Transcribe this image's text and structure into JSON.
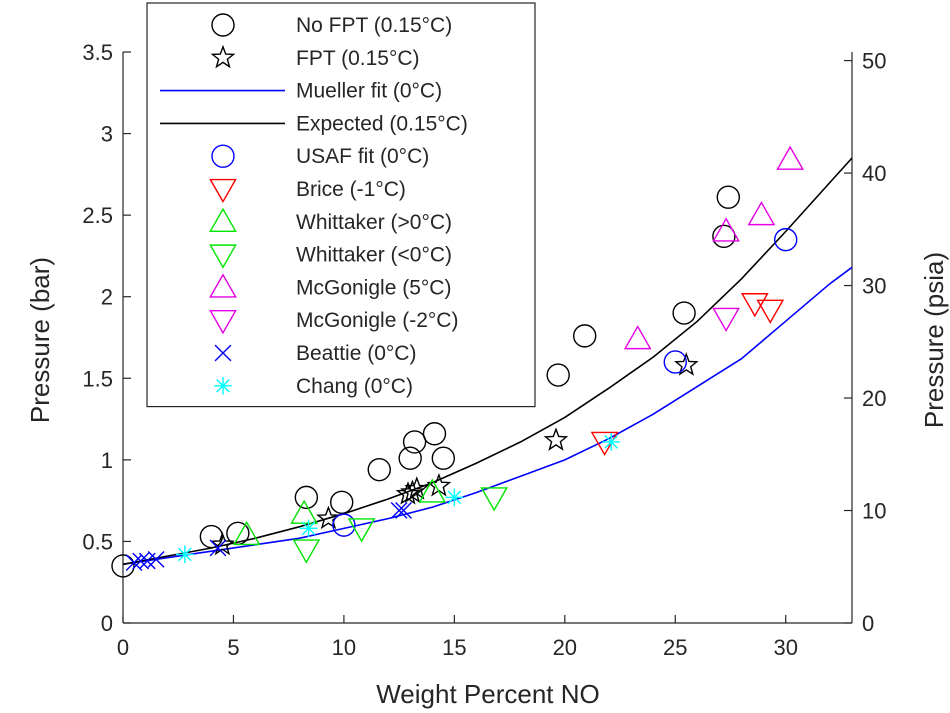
{
  "chart_data": {
    "type": "scatter",
    "xlabel": "Weight Percent NO",
    "ylabel": "Pressure (bar)",
    "y2label": "Pressure (psia)",
    "xlim": [
      0,
      33
    ],
    "ylim": [
      0,
      3.5
    ],
    "y2lim": [
      0,
      50.763
    ],
    "xticks": [
      0,
      5,
      10,
      15,
      20,
      25,
      30
    ],
    "yticks": [
      0,
      0.5,
      1,
      1.5,
      2,
      2.5,
      3,
      3.5
    ],
    "y2ticks": [
      0,
      10,
      20,
      30,
      40,
      50
    ],
    "grid": false,
    "legend_position": "top-left",
    "series": [
      {
        "name": "No FPT (0.15°C)",
        "marker": "circle",
        "color": "#000000",
        "x": [
          0,
          4,
          5.2,
          8.3,
          9.9,
          11.6,
          13.0,
          13.2,
          14.1,
          14.5,
          19.7,
          20.9,
          25.4,
          27.2,
          27.4
        ],
        "y": [
          0.35,
          0.53,
          0.55,
          0.77,
          0.74,
          0.94,
          1.01,
          1.11,
          1.16,
          1.01,
          1.52,
          1.76,
          1.9,
          2.37,
          2.61
        ]
      },
      {
        "name": "FPT (0.15°C)",
        "marker": "star",
        "color": "#000000",
        "x": [
          4.5,
          9.3,
          12.9,
          13.1,
          13.3,
          14.3,
          19.6,
          25.5
        ],
        "y": [
          0.48,
          0.64,
          0.79,
          0.8,
          0.82,
          0.84,
          1.12,
          1.58
        ]
      },
      {
        "name": "Mueller fit (0°C)",
        "line": "solid",
        "color": "#0000ff",
        "x": [
          0,
          2,
          4,
          6,
          8,
          10,
          12,
          14,
          16,
          18,
          20,
          22,
          24,
          26,
          28,
          30,
          32,
          33
        ],
        "y": [
          0.36,
          0.4,
          0.44,
          0.48,
          0.52,
          0.58,
          0.64,
          0.71,
          0.8,
          0.9,
          1.0,
          1.13,
          1.28,
          1.45,
          1.62,
          1.85,
          2.08,
          2.18
        ]
      },
      {
        "name": "Expected (0.15°C)",
        "line": "solid",
        "color": "#000000",
        "x": [
          0,
          2,
          4,
          6,
          8,
          10,
          12,
          14,
          16,
          18,
          20,
          22,
          24,
          26,
          28,
          30,
          32,
          33
        ],
        "y": [
          0.36,
          0.41,
          0.46,
          0.52,
          0.59,
          0.67,
          0.76,
          0.86,
          0.98,
          1.11,
          1.26,
          1.44,
          1.63,
          1.85,
          2.11,
          2.4,
          2.7,
          2.85
        ]
      },
      {
        "name": "USAF fit (0°C)",
        "marker": "circle",
        "color": "#0000ff",
        "x": [
          10.0,
          25.0,
          30.0
        ],
        "y": [
          0.6,
          1.6,
          2.35
        ]
      },
      {
        "name": "Brice (-1°C)",
        "marker": "triangle-down",
        "color": "#ff0000",
        "x": [
          21.8,
          28.6,
          29.3
        ],
        "y": [
          1.11,
          1.96,
          1.92
        ]
      },
      {
        "name": "Whittaker (>0°C)",
        "marker": "triangle-up",
        "color": "#00e600",
        "x": [
          5.6,
          8.2,
          14.0
        ],
        "y": [
          0.54,
          0.67,
          0.8
        ]
      },
      {
        "name": "Whittaker (<0°C)",
        "marker": "triangle-down",
        "color": "#00e600",
        "x": [
          8.3,
          10.8,
          16.8
        ],
        "y": [
          0.45,
          0.58,
          0.77
        ]
      },
      {
        "name": "McGonigle (5°C)",
        "marker": "triangle-up",
        "color": "#e600e6",
        "x": [
          23.3,
          27.3,
          28.9,
          30.2
        ],
        "y": [
          1.74,
          2.4,
          2.5,
          2.84
        ]
      },
      {
        "name": "McGonigle (-2°C)",
        "marker": "triangle-down",
        "color": "#e600e6",
        "x": [
          27.3
        ],
        "y": [
          1.87
        ]
      },
      {
        "name": "Beattie (0°C)",
        "marker": "x",
        "color": "#0000ff",
        "x": [
          0.5,
          0.8,
          1.1,
          1.5,
          4.3,
          12.5,
          12.7
        ],
        "y": [
          0.37,
          0.38,
          0.38,
          0.39,
          0.46,
          0.69,
          0.69
        ]
      },
      {
        "name": "Chang (0°C)",
        "marker": "asterisk",
        "color": "#00ffff",
        "x": [
          2.8,
          8.4,
          15.0,
          22.1
        ],
        "y": [
          0.42,
          0.58,
          0.77,
          1.11
        ]
      }
    ]
  }
}
